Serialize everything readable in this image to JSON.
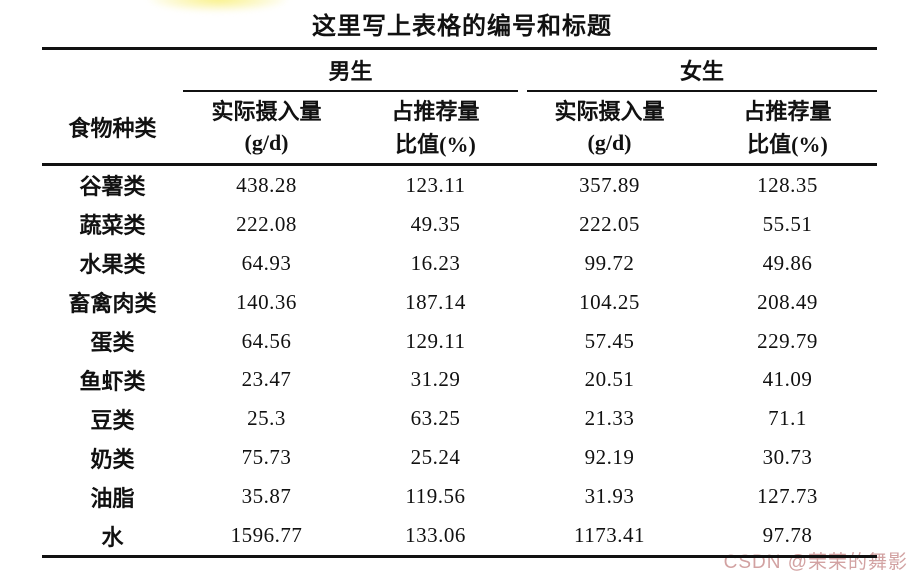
{
  "page": {
    "title": "这里写上表格的编号和标题",
    "background": "#ffffff",
    "text_color": "#111111",
    "rule_color": "#111111"
  },
  "watermark": {
    "text": "CSDN @茉茉的舞影",
    "color": "#d2a2a2"
  },
  "table": {
    "corner_header": "食物种类",
    "groups": [
      {
        "label": "男生"
      },
      {
        "label": "女生"
      }
    ],
    "sub_headers": {
      "intake_top": "实际摄入量",
      "intake_bottom": "(g/d)",
      "ratio_top": "占推荐量",
      "ratio_bottom": "比值(%)"
    },
    "rows": [
      {
        "cells": [
          "谷薯类",
          "438.28",
          "123.11",
          "357.89",
          "128.35"
        ]
      },
      {
        "cells": [
          "蔬菜类",
          "222.08",
          "49.35",
          "222.05",
          "55.51"
        ]
      },
      {
        "cells": [
          "水果类",
          "64.93",
          "16.23",
          "99.72",
          "49.86"
        ]
      },
      {
        "cells": [
          "畜禽肉类",
          "140.36",
          "187.14",
          "104.25",
          "208.49"
        ]
      },
      {
        "cells": [
          "蛋类",
          "64.56",
          "129.11",
          "57.45",
          "229.79"
        ]
      },
      {
        "cells": [
          "鱼虾类",
          "23.47",
          "31.29",
          "20.51",
          "41.09"
        ]
      },
      {
        "cells": [
          "豆类",
          "25.3",
          "63.25",
          "21.33",
          "71.1"
        ]
      },
      {
        "cells": [
          "奶类",
          "75.73",
          "25.24",
          "92.19",
          "30.73"
        ]
      },
      {
        "cells": [
          "油脂",
          "35.87",
          "119.56",
          "31.93",
          "127.73"
        ]
      },
      {
        "cells": [
          "水",
          "1596.77",
          "133.06",
          "1173.41",
          "97.78"
        ]
      }
    ]
  }
}
